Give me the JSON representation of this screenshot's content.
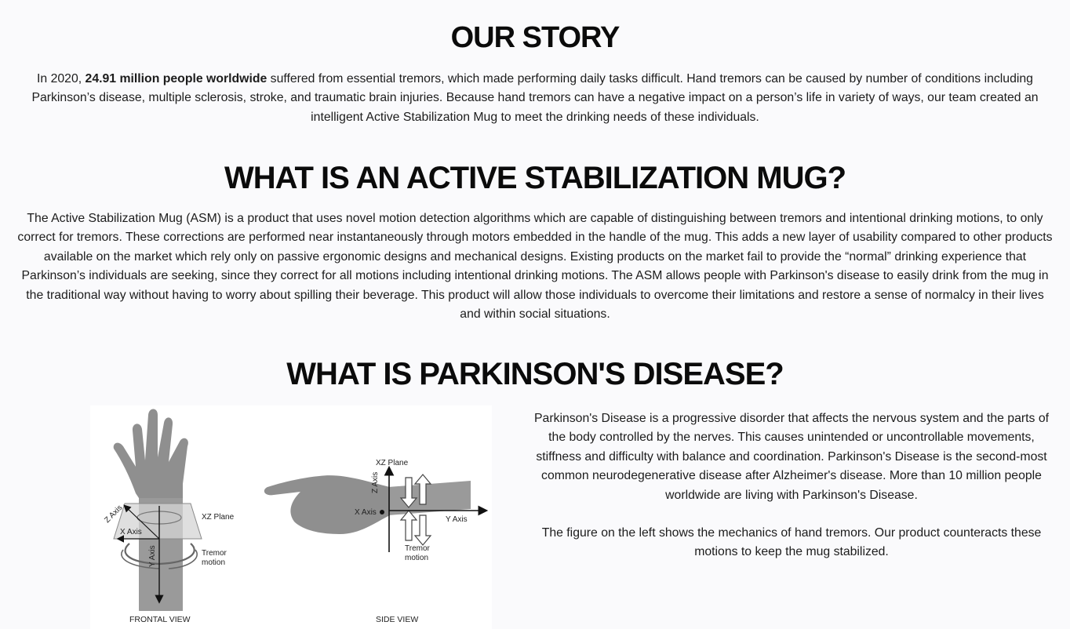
{
  "story": {
    "heading": "OUR STORY",
    "intro": "In 2020, ",
    "highlight": "24.91 million people worldwide",
    "rest": " suffered from essential tremors, which made performing daily tasks difficult. Hand tremors can be caused by number of conditions including Parkinson’s disease, multiple sclerosis, stroke, and traumatic brain injuries. Because hand tremors can have a negative impact on a person’s life in variety of ways, our team created an intelligent Active Stabilization Mug to meet the drinking needs of these individuals."
  },
  "asm": {
    "heading": "WHAT IS AN ACTIVE STABILIZATION MUG?",
    "body": "The Active Stabilization Mug (ASM) is a product that uses novel motion detection algorithms which are capable of distinguishing between tremors and intentional drinking motions, to only correct for tremors. These corrections are performed near instantaneously through motors embedded in the handle of the mug. This adds a new layer of usability compared to other products available on the market which rely only on passive ergonomic designs and mechanical designs. Existing products on the market fail to provide the “normal” drinking experience that Parkinson’s individuals are seeking, since they correct for all motions including intentional drinking motions. The ASM allows people with Parkinson's disease to easily drink from the mug in the traditional way without having to worry about spilling their beverage. This product will allow those individuals to overcome their limitations and restore a sense of normalcy in their lives and within social situations."
  },
  "parkinsons": {
    "heading": "WHAT IS PARKINSON'S DISEASE?",
    "para1": "Parkinson's Disease is a progressive disorder that affects the nervous system and the parts of the body controlled by the nerves. This causes unintended or uncontrollable movements, stiffness and difficulty with balance and coordination. Parkinson's Disease is the second-most common neurodegenerative disease after Alzheimer's disease. More than 10 million people worldwide are living with Parkinson's Disease.",
    "para2": "The figure on the left shows the mechanics of hand tremors. Our product counteracts these motions to keep the mug stabilized."
  },
  "figure": {
    "frontal": {
      "z_axis": "Z Axis",
      "x_axis": "X Axis",
      "y_axis": "Y Axis",
      "xz_plane": "XZ Plane",
      "tremor_1": "Tremor",
      "tremor_2": "motion",
      "caption": "FRONTAL VIEW"
    },
    "side": {
      "xz_plane": "XZ Plane",
      "z_axis": "Z Axis",
      "x_axis": "X Axis",
      "y_axis": "Y Axis",
      "tremor_1": "Tremor",
      "tremor_2": "motion",
      "caption": "SIDE VIEW"
    }
  }
}
